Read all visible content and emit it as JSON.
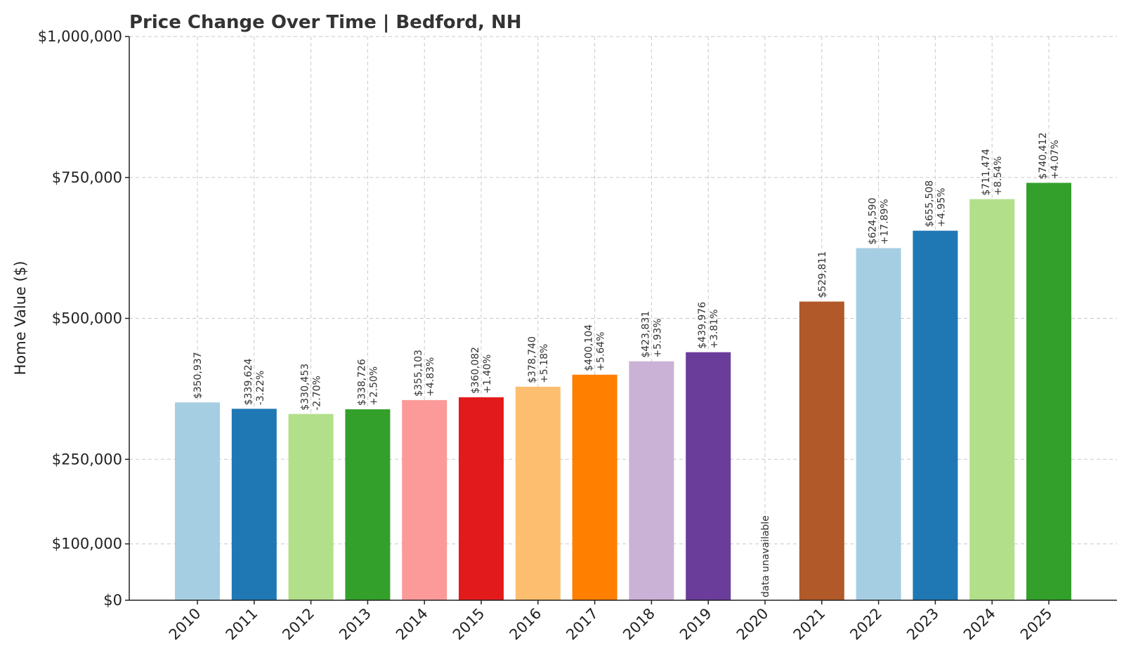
{
  "chart_data": {
    "type": "bar",
    "title": "Price Change Over Time | Bedford, NH",
    "xlabel": "",
    "ylabel": "Home Value ($)",
    "ylim": [
      0,
      1000000
    ],
    "yticks": [
      0,
      100000,
      250000,
      500000,
      750000,
      1000000
    ],
    "ytick_labels": [
      "$0",
      "$100,000",
      "$250,000",
      "$500,000",
      "$750,000",
      "$1,000,000"
    ],
    "grid": true,
    "categories": [
      "2010",
      "2011",
      "2012",
      "2013",
      "2014",
      "2015",
      "2016",
      "2017",
      "2018",
      "2019",
      "2020",
      "2021",
      "2022",
      "2023",
      "2024",
      "2025"
    ],
    "values": [
      350937,
      339624,
      330453,
      338726,
      355103,
      360082,
      378740,
      400104,
      423831,
      439976,
      null,
      529811,
      624590,
      655508,
      711474,
      740412
    ],
    "value_labels": [
      "$350,937",
      "$339,624",
      "$330,453",
      "$338,726",
      "$355,103",
      "$360,082",
      "$378,740",
      "$400,104",
      "$423,831",
      "$439,976",
      "",
      "$529,811",
      "$624,590",
      "$655,508",
      "$711,474",
      "$740,412"
    ],
    "change_labels": [
      "",
      "-3.22%",
      "-2.70%",
      "+2.50%",
      "+4.83%",
      "+1.40%",
      "+5.18%",
      "+5.64%",
      "+5.93%",
      "+3.81%",
      "",
      "",
      "+17.89%",
      "+4.95%",
      "+8.54%",
      "+4.07%"
    ],
    "missing_label": "data unavailable",
    "colors": [
      "#a6cee3",
      "#1f78b4",
      "#b2df8a",
      "#33a02c",
      "#fb9a99",
      "#e31a1c",
      "#fdbf6f",
      "#ff7f00",
      "#cab2d6",
      "#6a3d9a",
      "#ffff99",
      "#b15928",
      "#a6cee3",
      "#1f78b4",
      "#b2df8a",
      "#33a02c"
    ]
  }
}
